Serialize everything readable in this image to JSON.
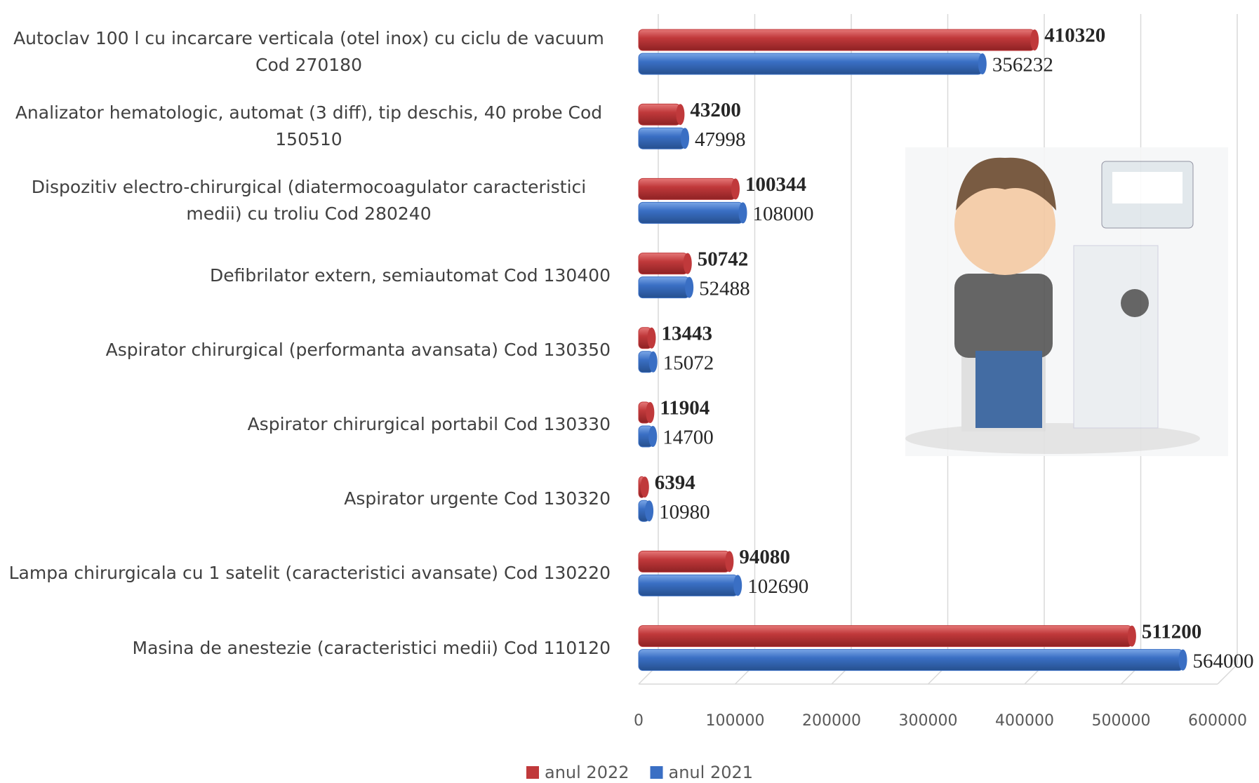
{
  "chart_data": {
    "type": "bar",
    "orientation": "horizontal",
    "categories": [
      "Autoclav 100 l cu incarcare verticala (otel inox) cu ciclu de vacuum Cod  270180",
      "Analizator hematologic, automat (3 diff), tip deschis, 40 probe Cod  150510",
      "Dispozitiv electro-chirurgical (diatermocoagulator caracteristici medii) cu troliu Cod  280240",
      "Defibrilator extern, semiautomat Cod  130400",
      "Aspirator chirurgical (performanta avansata) Cod  130350",
      "Aspirator chirurgical portabil Cod  130330",
      "Aspirator urgente Cod  130320",
      "Lampa chirurgicala cu 1 satelit (caracteristici avansate) Cod 130220",
      "Masina de anestezie (caracteristici medii) Cod  110120"
    ],
    "series": [
      {
        "name": "anul 2022",
        "color": "#c0393b",
        "values": [
          410320,
          43200,
          100344,
          50742,
          13443,
          11904,
          6394,
          94080,
          511200
        ]
      },
      {
        "name": "anul 2021",
        "color": "#3a6fc4",
        "values": [
          356232,
          47998,
          108000,
          52488,
          15072,
          14700,
          10980,
          102690,
          564000
        ]
      }
    ],
    "xlim": [
      0,
      600000
    ],
    "xticks": [
      0,
      100000,
      200000,
      300000,
      400000,
      500000,
      600000
    ],
    "grid": true,
    "legend": "bottom"
  }
}
